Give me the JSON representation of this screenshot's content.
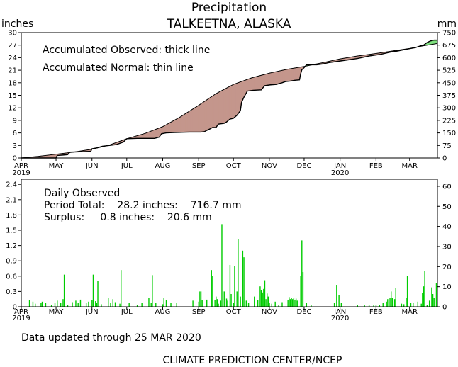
{
  "header": {
    "title": "Precipitation",
    "station": "TALKEETNA, ALASKA",
    "left_unit": "inches",
    "right_unit": "mm"
  },
  "chart_data": [
    {
      "type": "line",
      "name": "accumulated",
      "x_unit": "days since 2019-04-01",
      "x_range": [
        0,
        359
      ],
      "month_ticks": [
        {
          "day": 0,
          "label": "APR",
          "year": "2019"
        },
        {
          "day": 30,
          "label": "MAY",
          "year": ""
        },
        {
          "day": 61,
          "label": "JUN",
          "year": ""
        },
        {
          "day": 91,
          "label": "JUL",
          "year": ""
        },
        {
          "day": 122,
          "label": "AUG",
          "year": ""
        },
        {
          "day": 153,
          "label": "SEP",
          "year": ""
        },
        {
          "day": 183,
          "label": "OCT",
          "year": ""
        },
        {
          "day": 214,
          "label": "NOV",
          "year": ""
        },
        {
          "day": 244,
          "label": "DEC",
          "year": ""
        },
        {
          "day": 275,
          "label": "JAN",
          "year": "2020"
        },
        {
          "day": 306,
          "label": "FEB",
          "year": ""
        },
        {
          "day": 335,
          "label": "MAR",
          "year": ""
        }
      ],
      "y_left": {
        "ticks": [
          "0",
          "3",
          "6",
          "9",
          "12",
          "15",
          "18",
          "21",
          "24",
          "27",
          "30"
        ],
        "range": [
          0,
          30
        ]
      },
      "y_right": {
        "ticks": [
          "0",
          "75",
          "150",
          "225",
          "300",
          "375",
          "450",
          "525",
          "600",
          "675",
          "750"
        ],
        "range": [
          0,
          750
        ]
      },
      "annotations": [
        "Accumulated Observed: thick line",
        "Accumulated Normal: thin line"
      ],
      "deficit_color": "#c4968c",
      "surplus_color": "#7ee07e",
      "normal_points": [
        [
          0,
          0
        ],
        [
          15,
          0.4
        ],
        [
          30,
          0.9
        ],
        [
          45,
          1.4
        ],
        [
          61,
          2.1
        ],
        [
          76,
          3.1
        ],
        [
          91,
          4.6
        ],
        [
          107,
          5.9
        ],
        [
          122,
          7.5
        ],
        [
          137,
          9.8
        ],
        [
          153,
          12.6
        ],
        [
          168,
          15.4
        ],
        [
          183,
          17.6
        ],
        [
          199,
          19.2
        ],
        [
          214,
          20.3
        ],
        [
          229,
          21.2
        ],
        [
          244,
          21.9
        ],
        [
          260,
          22.8
        ],
        [
          275,
          23.7
        ],
        [
          290,
          24.4
        ],
        [
          306,
          25.0
        ],
        [
          320,
          25.6
        ],
        [
          335,
          26.2
        ],
        [
          346,
          26.8
        ],
        [
          359,
          27.4
        ]
      ],
      "observed_points": [
        [
          0,
          0
        ],
        [
          30,
          0
        ],
        [
          31,
          0.6
        ],
        [
          36,
          0.7
        ],
        [
          40,
          0.8
        ],
        [
          42,
          1.4
        ],
        [
          52,
          1.5
        ],
        [
          60,
          1.6
        ],
        [
          61,
          2.2
        ],
        [
          65,
          2.4
        ],
        [
          70,
          2.8
        ],
        [
          76,
          3.0
        ],
        [
          82,
          3.2
        ],
        [
          88,
          3.8
        ],
        [
          91,
          4.6
        ],
        [
          100,
          4.7
        ],
        [
          115,
          4.7
        ],
        [
          119,
          5.0
        ],
        [
          121,
          5.8
        ],
        [
          125,
          6.0
        ],
        [
          132,
          6.1
        ],
        [
          145,
          6.2
        ],
        [
          155,
          6.2
        ],
        [
          158,
          6.3
        ],
        [
          160,
          6.6
        ],
        [
          163,
          7.0
        ],
        [
          165,
          7.3
        ],
        [
          168,
          7.3
        ],
        [
          170,
          8.1
        ],
        [
          175,
          8.3
        ],
        [
          177,
          8.6
        ],
        [
          180,
          9.3
        ],
        [
          183,
          9.5
        ],
        [
          186,
          10.2
        ],
        [
          189,
          11.3
        ],
        [
          190,
          13.3
        ],
        [
          192,
          14.5
        ],
        [
          195,
          16.0
        ],
        [
          200,
          16.2
        ],
        [
          207,
          16.3
        ],
        [
          210,
          17.3
        ],
        [
          215,
          17.5
        ],
        [
          220,
          17.6
        ],
        [
          225,
          18.0
        ],
        [
          228,
          18.3
        ],
        [
          232,
          18.4
        ],
        [
          236,
          18.6
        ],
        [
          240,
          18.7
        ],
        [
          241,
          20.1
        ],
        [
          242,
          21.1
        ],
        [
          244,
          21.6
        ],
        [
          246,
          22.3
        ],
        [
          255,
          22.3
        ],
        [
          260,
          22.5
        ],
        [
          265,
          22.8
        ],
        [
          275,
          23.2
        ],
        [
          290,
          23.8
        ],
        [
          300,
          24.4
        ],
        [
          310,
          24.8
        ],
        [
          318,
          25.3
        ],
        [
          325,
          25.6
        ],
        [
          332,
          26.0
        ],
        [
          340,
          26.4
        ],
        [
          344,
          26.8
        ],
        [
          347,
          27.0
        ],
        [
          350,
          27.6
        ],
        [
          353,
          28.0
        ],
        [
          356,
          28.2
        ],
        [
          359,
          28.2
        ]
      ]
    },
    {
      "type": "bar",
      "name": "daily",
      "x_unit": "days since 2019-04-01",
      "x_range": [
        0,
        359
      ],
      "y_left": {
        "ticks": [
          "0",
          "0.3",
          "0.6",
          "0.9",
          "1.2",
          "1.5",
          "1.8",
          "2.1",
          "2.4"
        ],
        "range": [
          0,
          2.5
        ]
      },
      "y_right": {
        "ticks": [
          "0",
          "10",
          "20",
          "30",
          "40",
          "50",
          "60"
        ],
        "range": [
          0,
          63.5
        ]
      },
      "bar_color": "#00cc00",
      "annotations": {
        "title": "Daily Observed",
        "period_total": "Period Total:    28.2 inches:    716.7 mm",
        "surplus": "Surplus:     0.8 inches:    20.6 mm"
      },
      "bars": [
        [
          7,
          0.13
        ],
        [
          10,
          0.1
        ],
        [
          12,
          0.06
        ],
        [
          17,
          0.07
        ],
        [
          18,
          0.1
        ],
        [
          21,
          0.08
        ],
        [
          26,
          0.04
        ],
        [
          29,
          0.07
        ],
        [
          31,
          0.12
        ],
        [
          34,
          0.08
        ],
        [
          36,
          0.15
        ],
        [
          37,
          0.63
        ],
        [
          40,
          0.03
        ],
        [
          44,
          0.09
        ],
        [
          47,
          0.12
        ],
        [
          49,
          0.08
        ],
        [
          51,
          0.14
        ],
        [
          56,
          0.08
        ],
        [
          58,
          0.1
        ],
        [
          61,
          0.13
        ],
        [
          62,
          0.63
        ],
        [
          64,
          0.11
        ],
        [
          65,
          0.07
        ],
        [
          66,
          0.5
        ],
        [
          69,
          0.05
        ],
        [
          75,
          0.18
        ],
        [
          77,
          0.07
        ],
        [
          79,
          0.15
        ],
        [
          81,
          0.09
        ],
        [
          85,
          0.06
        ],
        [
          86,
          0.72
        ],
        [
          93,
          0.07
        ],
        [
          100,
          0.04
        ],
        [
          104,
          0.07
        ],
        [
          110,
          0.17
        ],
        [
          112,
          0.07
        ],
        [
          113,
          0.62
        ],
        [
          116,
          0.07
        ],
        [
          122,
          0.05
        ],
        [
          123,
          0.18
        ],
        [
          125,
          0.13
        ],
        [
          129,
          0.08
        ],
        [
          134,
          0.07
        ],
        [
          148,
          0.12
        ],
        [
          153,
          0.1
        ],
        [
          154,
          0.3
        ],
        [
          155,
          0.3
        ],
        [
          156,
          0.13
        ],
        [
          160,
          0.14
        ],
        [
          164,
          0.72
        ],
        [
          165,
          0.6
        ],
        [
          167,
          0.13
        ],
        [
          168,
          0.2
        ],
        [
          169,
          0.15
        ],
        [
          170,
          0.06
        ],
        [
          172,
          0.12
        ],
        [
          173,
          1.62
        ],
        [
          175,
          0.3
        ],
        [
          177,
          0.16
        ],
        [
          178,
          0.12
        ],
        [
          180,
          0.82
        ],
        [
          181,
          0.25
        ],
        [
          183,
          0.08
        ],
        [
          184,
          0.8
        ],
        [
          186,
          0.3
        ],
        [
          187,
          1.33
        ],
        [
          189,
          0.2
        ],
        [
          191,
          1.1
        ],
        [
          192,
          0.97
        ],
        [
          194,
          0.12
        ],
        [
          196,
          0.08
        ],
        [
          201,
          0.2
        ],
        [
          204,
          0.13
        ],
        [
          206,
          0.4
        ],
        [
          207,
          0.32
        ],
        [
          208,
          0.28
        ],
        [
          209,
          0.35
        ],
        [
          210,
          0.52
        ],
        [
          211,
          0.15
        ],
        [
          212,
          0.26
        ],
        [
          213,
          0.2
        ],
        [
          214,
          0.07
        ],
        [
          216,
          0.06
        ],
        [
          219,
          0.1
        ],
        [
          222,
          0.04
        ],
        [
          225,
          0.09
        ],
        [
          230,
          0.13
        ],
        [
          231,
          0.19
        ],
        [
          232,
          0.15
        ],
        [
          233,
          0.18
        ],
        [
          234,
          0.15
        ],
        [
          235,
          0.17
        ],
        [
          236,
          0.13
        ],
        [
          237,
          0.16
        ],
        [
          238,
          0.12
        ],
        [
          241,
          0.6
        ],
        [
          242,
          1.3
        ],
        [
          243,
          0.68
        ],
        [
          246,
          0.08
        ],
        [
          250,
          0.03
        ],
        [
          270,
          0.08
        ],
        [
          272,
          0.43
        ],
        [
          274,
          0.23
        ],
        [
          276,
          0.07
        ],
        [
          290,
          0.03
        ],
        [
          296,
          0.03
        ],
        [
          300,
          0.03
        ],
        [
          304,
          0.03
        ],
        [
          306,
          0.03
        ],
        [
          309,
          0.03
        ],
        [
          312,
          0.08
        ],
        [
          315,
          0.1
        ],
        [
          316,
          0.15
        ],
        [
          318,
          0.18
        ],
        [
          319,
          0.3
        ],
        [
          320,
          0.18
        ],
        [
          322,
          0.15
        ],
        [
          323,
          0.37
        ],
        [
          328,
          0.06
        ],
        [
          330,
          0.05
        ],
        [
          332,
          0.18
        ],
        [
          333,
          0.6
        ],
        [
          336,
          0.08
        ],
        [
          338,
          0.08
        ],
        [
          342,
          0.1
        ],
        [
          345,
          0.06
        ],
        [
          346,
          0.27
        ],
        [
          347,
          0.4
        ],
        [
          348,
          0.7
        ],
        [
          350,
          0.03
        ],
        [
          352,
          0.12
        ],
        [
          354,
          0.38
        ],
        [
          355,
          0.25
        ],
        [
          356,
          0.18
        ],
        [
          358,
          0.47
        ]
      ]
    }
  ],
  "footer": {
    "updated": "Data updated through 25 MAR 2020",
    "credit": "CLIMATE PREDICTION CENTER/NCEP"
  }
}
